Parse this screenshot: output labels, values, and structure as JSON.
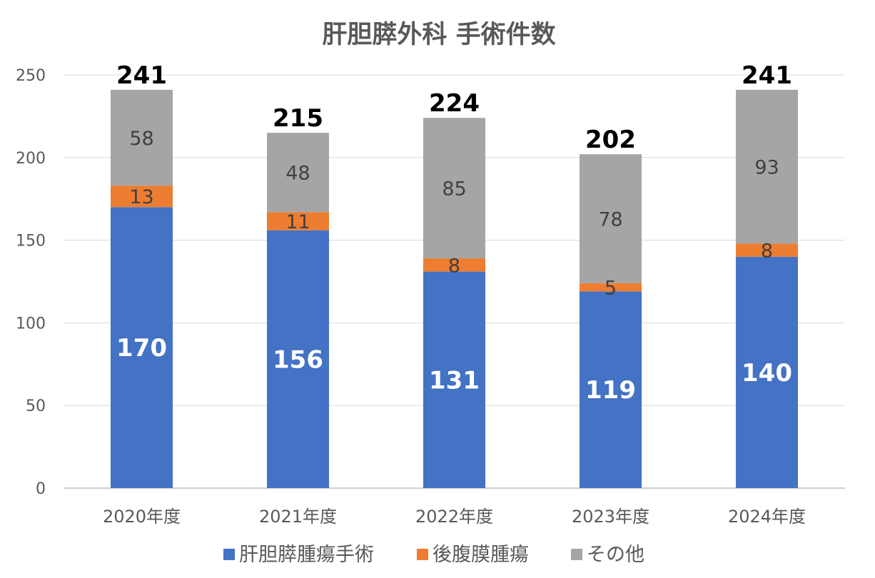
{
  "chart_data": {
    "type": "bar",
    "stacked": true,
    "title": "肝胆膵外科 手術件数",
    "xlabel": "",
    "ylabel": "",
    "ylim": [
      0,
      250
    ],
    "yticks": [
      0,
      50,
      100,
      150,
      200,
      250
    ],
    "grid": true,
    "legend_position": "bottom",
    "categories": [
      "2020年度",
      "2021年度",
      "2022年度",
      "2023年度",
      "2024年度"
    ],
    "series": [
      {
        "name": "肝胆膵腫瘍手術",
        "color": "#4472C4",
        "values": [
          170,
          156,
          131,
          119,
          140
        ]
      },
      {
        "name": "後腹膜腫瘍",
        "color": "#ED7D31",
        "values": [
          13,
          11,
          8,
          5,
          8
        ]
      },
      {
        "name": "その他",
        "color": "#A5A5A5",
        "values": [
          58,
          48,
          85,
          78,
          93
        ]
      }
    ],
    "totals": [
      241,
      215,
      224,
      202,
      241
    ]
  }
}
